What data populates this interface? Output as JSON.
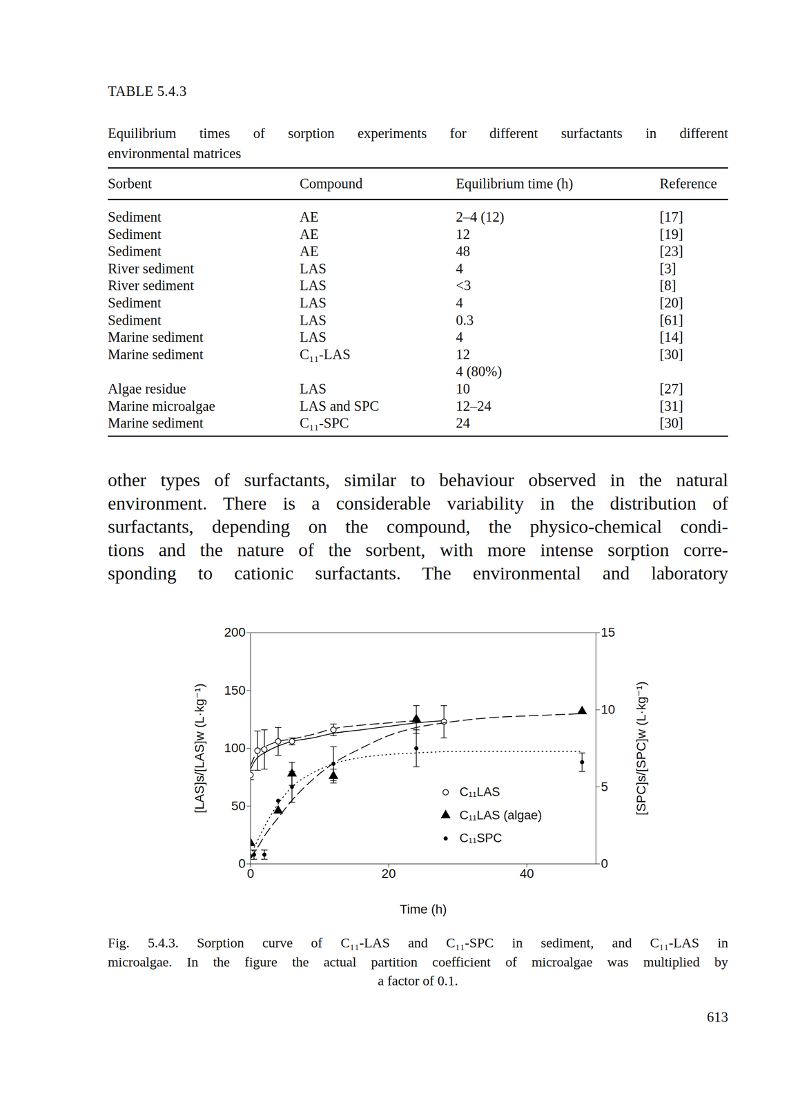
{
  "table": {
    "title": "TABLE 5.4.3",
    "caption": [
      "Equilibrium times of sorption experiments for different surfactants in different",
      "environmental matrices"
    ],
    "header": [
      "Sorbent",
      "Compound",
      "Equilibrium time (h)",
      "Reference"
    ],
    "rows": [
      [
        "Sediment",
        "AE",
        "2–4 (12)",
        "[17]"
      ],
      [
        "Sediment",
        "AE",
        "12",
        "[19]"
      ],
      [
        "Sediment",
        "AE",
        "48",
        "[23]"
      ],
      [
        "River sediment",
        "LAS",
        "4",
        "[3]"
      ],
      [
        "River sediment",
        "LAS",
        "<3",
        "[8]"
      ],
      [
        "Sediment",
        "LAS",
        "4",
        "[20]"
      ],
      [
        "Sediment",
        "LAS",
        "0.3",
        "[61]"
      ],
      [
        "Marine sediment",
        "LAS",
        "4",
        "[14]"
      ],
      [
        "Marine sediment",
        "C₁₁-LAS",
        [
          "12",
          "4 (80%)"
        ],
        "[30]"
      ],
      [
        "Algae residue",
        "LAS",
        "10",
        "[27]"
      ],
      [
        "Marine microalgae",
        "LAS and SPC",
        "12–24",
        "[31]"
      ],
      [
        "Marine sediment",
        "C₁₁-SPC",
        "24",
        "[30]"
      ]
    ]
  },
  "text": [
    "other types of surfactants, similar to behaviour observed in the natural",
    "environment. There is a considerable variability in the distribution of",
    "surfactants, depending on the compound, the physico-chemical condi-",
    "tions and the nature of the sorbent, with more intense sorption corre-",
    "sponding to cationic surfactants. The environmental and laboratory"
  ],
  "chart_data": {
    "type": "scatter",
    "x_label": "Time (h)",
    "y_label": "[LAS]s/[LAS]w (L·kg⁻¹)",
    "y2_label": "[SPC]s/[SPC]w (L·kg⁻¹)",
    "xlim": [
      0,
      50
    ],
    "xticks": [
      0,
      20,
      40
    ],
    "ylim": [
      0,
      200
    ],
    "yticks": [
      0,
      50,
      100,
      150,
      200
    ],
    "y2lim": [
      0,
      15
    ],
    "y2ticks": [
      0,
      5,
      10,
      15
    ],
    "grid": false,
    "legend": "lower right",
    "series": [
      {
        "name": "C₁₁LAS",
        "axis": "y",
        "color": "#000000",
        "marker": "open circle",
        "x": [
          0,
          1,
          2,
          4,
          6,
          12,
          24,
          28
        ],
        "values": [
          77,
          98,
          99,
          106,
          106,
          116,
          125,
          123
        ],
        "errors": [
          4,
          17,
          17,
          12,
          3,
          5,
          12,
          14
        ],
        "fits": [
          {
            "line_style": "solid",
            "x": [
              0,
              0.5,
              1,
              2,
              4,
              6,
              9,
              12,
              16,
              20,
              24,
              28
            ],
            "values": [
              82,
              88,
              92,
              96,
              102,
              106,
              109,
              113,
              116,
              119,
              122,
              124
            ]
          },
          {
            "line_style": "dashed",
            "x": [
              0,
              0.5,
              1,
              2,
              4,
              6,
              9,
              12,
              16,
              20,
              24
            ],
            "values": [
              85,
              92,
              97,
              101,
              106,
              108,
              112,
              117,
              120,
              122,
              124
            ]
          }
        ]
      },
      {
        "name": "C₁₁LAS (algae)",
        "axis": "y",
        "color": "#000000",
        "marker": "triangle",
        "x": [
          0,
          4,
          6,
          12,
          24,
          48
        ],
        "values": [
          18,
          46,
          78,
          76,
          125,
          132
        ],
        "errors": [
          0,
          0,
          10,
          6,
          0,
          0
        ],
        "fits": [
          {
            "line_style": "dashed",
            "x": [
              0,
              1,
              2,
              4,
              6,
              9,
              12,
              16,
              20,
              24,
              28,
              32,
              36,
              40,
              44,
              48
            ],
            "values": [
              5,
              14,
              24,
              40,
              55,
              73,
              87,
              100,
              111,
              118,
              122,
              125,
              127,
              128,
              129,
              130
            ]
          }
        ]
      },
      {
        "name": "C₁₁SPC",
        "axis": "y2",
        "color": "#000000",
        "marker": "dot",
        "x": [
          0,
          0.5,
          2,
          4,
          6,
          12,
          24,
          48
        ],
        "values": [
          0.5,
          0.6,
          0.6,
          4.1,
          5.0,
          6.5,
          7.5,
          6.6
        ],
        "errors": [
          0,
          0.3,
          0.3,
          0,
          1.0,
          1.1,
          1.2,
          0.6
        ],
        "fits": [
          {
            "line_style": "dotted",
            "x": [
              0,
              1,
              2,
              4,
              6,
              9,
              12,
              16,
              20,
              24,
              30,
              36,
              42,
              48
            ],
            "values": [
              0.6,
              1.5,
              2.4,
              3.9,
              5.0,
              5.9,
              6.5,
              6.9,
              7.1,
              7.2,
              7.3,
              7.3,
              7.3,
              7.3
            ]
          }
        ]
      }
    ]
  },
  "figure_caption": [
    "Fig. 5.4.3. Sorption curve of C₁₁-LAS and C₁₁-SPC in sediment, and C₁₁-LAS in",
    "microalgae. In the figure the actual partition coefficient of microalgae was multiplied by",
    "a factor of 0.1."
  ],
  "page_number": "613"
}
